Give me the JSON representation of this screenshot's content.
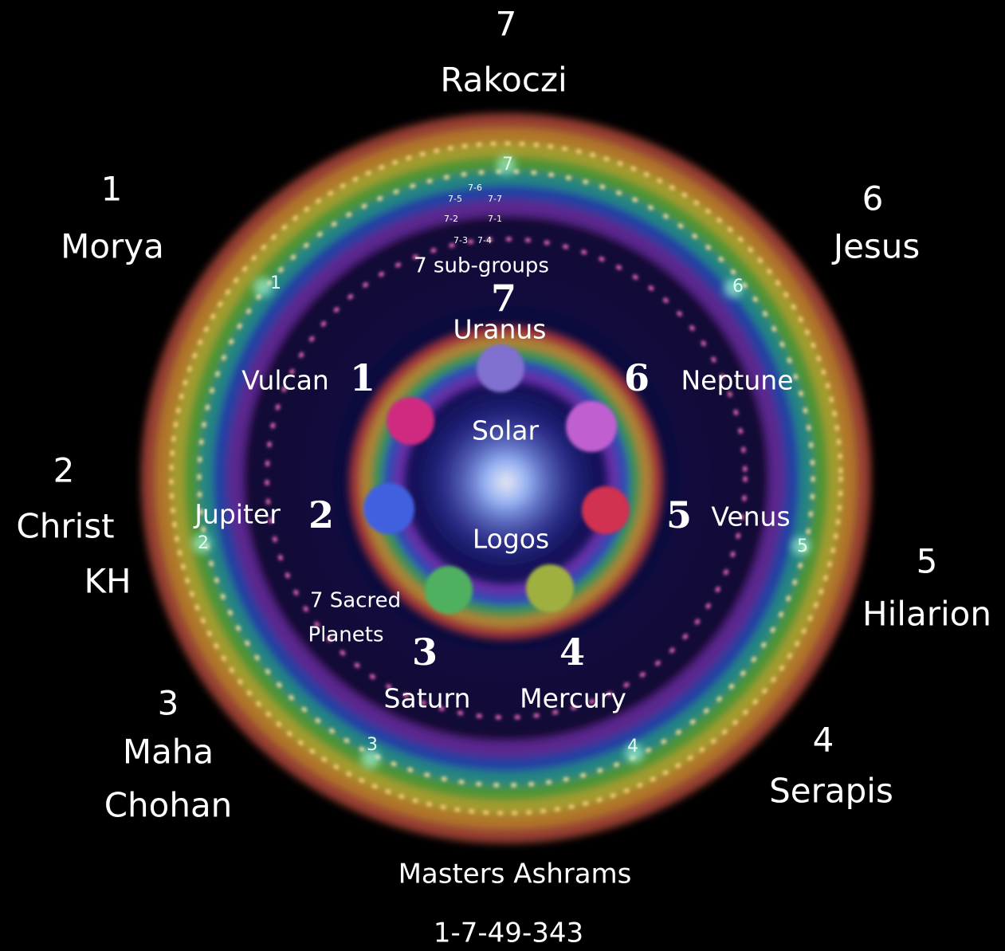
{
  "masters": [
    {
      "number": "7",
      "name": [
        "Rakoczi"
      ]
    },
    {
      "number": "1",
      "name": [
        "Morya"
      ]
    },
    {
      "number": "6",
      "name": [
        "Jesus"
      ]
    },
    {
      "number": "2",
      "name": [
        "Christ",
        "KH"
      ]
    },
    {
      "number": "5",
      "name": [
        "Hilarion"
      ]
    },
    {
      "number": "3",
      "name": [
        "Maha",
        "Chohan"
      ]
    },
    {
      "number": "4",
      "name": [
        "Serapis"
      ]
    }
  ],
  "ashram_markers": [
    "7",
    "1",
    "6",
    "2",
    "5",
    "3",
    "4"
  ],
  "sub_groups": {
    "labels": [
      "7-6",
      "7-5",
      "7-7",
      "7-2",
      "7-1",
      "7-3",
      "7-4"
    ],
    "caption": "7 sub-groups"
  },
  "planets": [
    {
      "number": "7",
      "name": "Uranus"
    },
    {
      "number": "1",
      "name": "Vulcan"
    },
    {
      "number": "6",
      "name": "Neptune"
    },
    {
      "number": "2",
      "name": "Jupiter"
    },
    {
      "number": "5",
      "name": "Venus"
    },
    {
      "number": "3",
      "name": "Saturn"
    },
    {
      "number": "4",
      "name": "Mercury"
    }
  ],
  "center": [
    "Solar",
    "Logos"
  ],
  "sacred_planets": [
    "7 Sacred",
    "Planets"
  ],
  "footer": {
    "title": "Masters Ashrams",
    "code": "1-7-49-343"
  }
}
